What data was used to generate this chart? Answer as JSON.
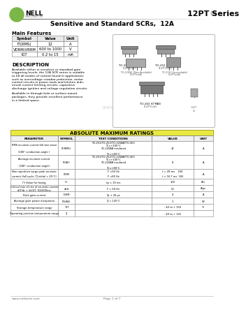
{
  "title": "12PT Series",
  "subtitle": "Sensitive and Standard SCRs,  12A",
  "company": "NELL",
  "company_sub": "SEMICONDUCTOR",
  "bg_color": "#ffffff",
  "section_main_features": "Main Features",
  "table_headers": [
    "Symbol",
    "Value",
    "Unit"
  ],
  "table_rows": [
    [
      "IT(RMS)",
      "12",
      "A"
    ],
    [
      "VDRM/VRRM",
      "600 to 1000",
      "V"
    ],
    [
      "IGT",
      "0.2 to 15",
      "mA"
    ]
  ],
  "section_description": "DESCRIPTION",
  "desc1": "Available either in sensitive or standard gate\ntriggering levels, the 12A SCR series is suitable\nto fill all modes of control found in applications\nsuch as overvoltage crowbar protection, motor\ncontrol circuits in power tools and kitchen aids,\ninrush current limiting circuits, capacitive\ndischarge ignition and voltage regulation circuits.",
  "desc2": "Available in through-hole or surface-mount\npackages, they provide excellent performance\nin a limited space.",
  "pkg_labels_top": [
    [
      "TO-251 (S-PAK)",
      "(12PTxxF)"
    ],
    [
      "TO-252 (D-PAK)",
      "(12PTxxG)"
    ]
  ],
  "pkg_labels_mid": [
    [
      "TO-220S6 (Non Available)",
      "(12PTxxA)"
    ],
    [
      "TO-218 (Unavailable)",
      "(12PTxxA)"
    ]
  ],
  "pkg_label_bot": [
    "TO-263 (D²PAK)",
    "(12PTxxE)"
  ],
  "watermark": "ЭЛЕКТРОННЫЙ  ПОРТАЛ",
  "section_abs": "ABSOLUTE MAXIMUM RATINGS",
  "abs_col_widths": [
    68,
    24,
    110,
    60,
    28
  ],
  "abs_headers": [
    "PARAMETER",
    "SYMBOL",
    "TEST CONDITIONS",
    "VALUE",
    "UNIT"
  ],
  "abs_rows": [
    {
      "param": "RMS on-state current full sine wave\n(180° conduction angle )",
      "symbol": "IT(RMS)",
      "test": "TO-251/TO-252/TO-220AB/TO-263\nTC=+100°C\nTO-220AB insulated\n \nTC=+80°C",
      "value": "12",
      "unit": "A",
      "rh": 20
    },
    {
      "param": "Average on-state current\n(180° conduction angle)",
      "symbol": "IT(AV)",
      "test": "TO-251/TO-252/TO-220AB/TO-263\nTC=+100°C\nTO-220AB insulated\n \nTC=+80°C",
      "value": "8",
      "unit": "A",
      "rh": 20
    },
    {
      "param": "Non repetitive surge peak on-state\ncurrent (full cycle, TJ initial = 25°C)",
      "symbol": "ITSM",
      "test": "F =50 Hz\nF =60 Hz",
      "value": "t = 20 ms    160\nt = 16.7 ms  165",
      "unit": "A",
      "rh": 14
    },
    {
      "param": "I²t Value for fusing",
      "symbol": "I²t",
      "test": "tp = 10 ms",
      "value": "100",
      "unit": "A²s",
      "rh": 9
    },
    {
      "param": "Critical rate of rise of on-state current\ndlT/dt + 2dlGT, fG1000ms",
      "symbol": "dldt",
      "test": "F = 50 Hz",
      "value": "50",
      "unit": "A/μs",
      "unit2": "TJ = 125°C",
      "rh": 9
    },
    {
      "param": "Peak gate current",
      "symbol": "IGSM",
      "test": "Tp + 20 μs",
      "value": "4",
      "unit": "A",
      "unit2": "TJ = 125°C",
      "rh": 9
    },
    {
      "param": "Average gate power dissipation",
      "symbol": "PG(AV)",
      "test": "TJ = 125°C",
      "value": "1",
      "unit": "W",
      "rh": 9
    },
    {
      "param": "Storage temperature range",
      "symbol": "TST",
      "test": "",
      "value": "- 40 to + 150",
      "unit": "°C",
      "rh": 9
    },
    {
      "param": "Operating junction temperature range",
      "symbol": "TJ",
      "test": "",
      "value": "- 40 to + 125",
      "unit": "",
      "rh": 9
    }
  ],
  "footer_text": "www.nellsemi.com",
  "footer_page": "Page 1 of 7"
}
